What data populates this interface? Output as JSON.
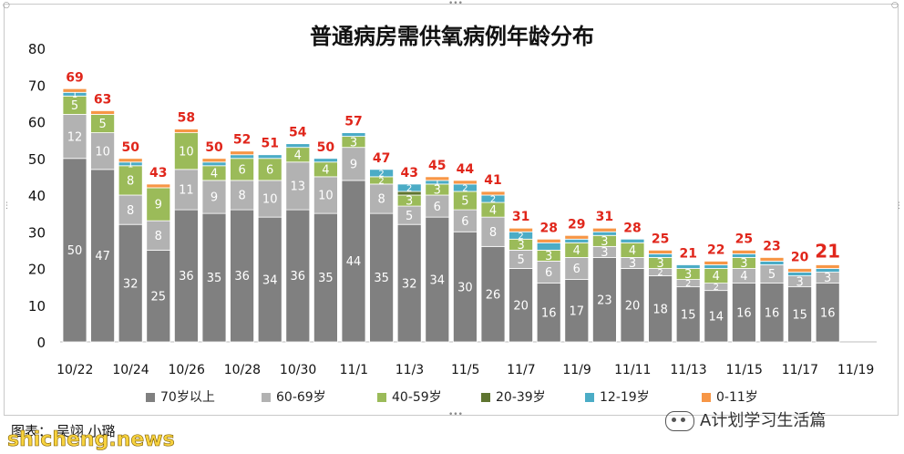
{
  "chart_data": {
    "type": "bar",
    "stacked": true,
    "title": "普通病房需供氧病例年龄分布",
    "categories": [
      "10/22",
      "10/23",
      "10/24",
      "10/25",
      "10/26",
      "10/27",
      "10/28",
      "10/29",
      "10/30",
      "10/31",
      "11/1",
      "11/2",
      "11/3",
      "11/4",
      "11/5",
      "11/6",
      "11/7",
      "11/8",
      "11/9",
      "11/10",
      "11/11",
      "11/12",
      "11/13",
      "11/14",
      "11/15",
      "11/16",
      "11/17",
      "11/18"
    ],
    "x_tick_labels": [
      "10/22",
      "10/24",
      "10/26",
      "10/28",
      "10/30",
      "11/1",
      "11/3",
      "11/5",
      "11/7",
      "11/9",
      "11/11",
      "11/13",
      "11/15",
      "11/17",
      "11/19"
    ],
    "ylim": [
      0,
      80
    ],
    "yticks": [
      0,
      10,
      20,
      30,
      40,
      50,
      60,
      70,
      80
    ],
    "grid": false,
    "legend_position": "bottom",
    "series": [
      {
        "name": "70岁以上",
        "color": "#808080",
        "values": [
          50,
          47,
          32,
          25,
          36,
          35,
          36,
          34,
          36,
          35,
          44,
          35,
          32,
          34,
          30,
          26,
          20,
          16,
          17,
          23,
          20,
          18,
          15,
          14,
          16,
          16,
          15,
          16
        ],
        "labels": [
          "50",
          "47",
          "32",
          "25",
          "36",
          "35",
          "36",
          "34",
          "36",
          "35",
          "44",
          "35",
          "32",
          "34",
          "30",
          "26",
          "20",
          "16",
          "17",
          "23",
          "20",
          "18",
          "15",
          "14",
          "16",
          "16",
          "15",
          "16"
        ]
      },
      {
        "name": "60-69岁",
        "color": "#b2b2b2",
        "values": [
          12,
          10,
          8,
          8,
          11,
          9,
          8,
          10,
          13,
          10,
          9,
          8,
          5,
          6,
          6,
          8,
          5,
          6,
          6,
          3,
          3,
          2,
          2,
          2,
          4,
          5,
          3,
          3
        ],
        "labels": [
          "12",
          "10",
          "8",
          "8",
          "11",
          "9",
          "8",
          "10",
          "13",
          "10",
          "9",
          "8",
          "5",
          "6",
          "6",
          "8",
          "5",
          "6",
          "6",
          "3",
          "3",
          "2",
          "2",
          "2",
          "4",
          "5",
          "3",
          "3"
        ]
      },
      {
        "name": "40-59岁",
        "color": "#9bbb59",
        "values": [
          5,
          5,
          8,
          9,
          10,
          4,
          6,
          6,
          4,
          4,
          3,
          2,
          3,
          3,
          5,
          4,
          3,
          3,
          4,
          3,
          4,
          3,
          3,
          4,
          3,
          0,
          0,
          0
        ],
        "labels": [
          "5",
          "5",
          "8",
          "9",
          "10",
          "4",
          "6",
          "6",
          "4",
          "4",
          "3",
          "2",
          "3",
          "3",
          "5",
          "4",
          "3",
          "3",
          "4",
          "3",
          "4",
          "3",
          "3",
          "4",
          "3",
          "",
          "",
          ""
        ]
      },
      {
        "name": "20-39岁",
        "color": "#5f7530",
        "values": [
          0,
          0,
          0,
          0,
          0,
          0,
          0,
          0,
          0,
          0,
          0,
          0,
          1,
          0,
          0,
          0,
          0,
          0,
          0,
          0,
          0,
          0,
          0,
          0,
          0,
          0,
          0,
          0
        ],
        "labels": [
          "",
          "",
          "",
          "",
          "",
          "",
          "",
          "",
          "",
          "",
          "",
          "",
          "",
          "",
          "",
          "",
          "",
          "",
          "",
          "",
          "",
          "",
          "",
          "",
          "",
          "",
          "",
          ""
        ]
      },
      {
        "name": "12-19岁",
        "color": "#4bacc6",
        "values": [
          1,
          0,
          1,
          0,
          0,
          1,
          1,
          1,
          1,
          1,
          1,
          2,
          2,
          1,
          2,
          2,
          2,
          2,
          1,
          1,
          1,
          1,
          1,
          1,
          1,
          1,
          1,
          1
        ],
        "labels": [
          "1",
          "",
          "1",
          "",
          "",
          "",
          "",
          "",
          "",
          "",
          "",
          "2",
          "2",
          "1",
          "2",
          "2",
          "2",
          "",
          "",
          "",
          "",
          "",
          "",
          "",
          "",
          "",
          "",
          ""
        ]
      },
      {
        "name": "0-11岁",
        "color": "#f79646",
        "values": [
          1,
          1,
          1,
          1,
          1,
          1,
          1,
          0,
          0,
          0,
          0,
          0,
          0,
          1,
          1,
          1,
          1,
          1,
          1,
          1,
          0,
          1,
          0,
          1,
          1,
          1,
          1,
          1
        ],
        "labels": [
          "",
          "",
          "",
          "",
          "",
          "",
          "",
          "",
          "",
          "",
          "",
          "",
          "",
          "",
          "",
          "",
          "",
          "",
          "",
          "",
          "",
          "",
          "",
          "",
          "",
          "",
          "",
          ""
        ]
      }
    ],
    "totals": [
      69,
      63,
      50,
      43,
      58,
      50,
      52,
      51,
      54,
      50,
      57,
      47,
      43,
      45,
      44,
      41,
      31,
      28,
      29,
      31,
      28,
      25,
      21,
      22,
      25,
      23,
      20,
      21
    ],
    "highlight_last_total": true
  },
  "legend": {
    "items": [
      {
        "label": "70岁以上",
        "color": "#808080"
      },
      {
        "label": "60-69岁",
        "color": "#b2b2b2"
      },
      {
        "label": "40-59岁",
        "color": "#9bbb59"
      },
      {
        "label": "20-39岁",
        "color": "#5f7530"
      },
      {
        "label": "12-19岁",
        "color": "#4bacc6"
      },
      {
        "label": "0-11岁",
        "color": "#f79646"
      }
    ]
  },
  "footer": {
    "source_text": "图表： 吴翊 小璐",
    "account_name": "A计划学习生活篇",
    "watermark": "shicheng.news"
  },
  "colors": {
    "total_label": "#e0261b",
    "axis_text": "#111111"
  }
}
